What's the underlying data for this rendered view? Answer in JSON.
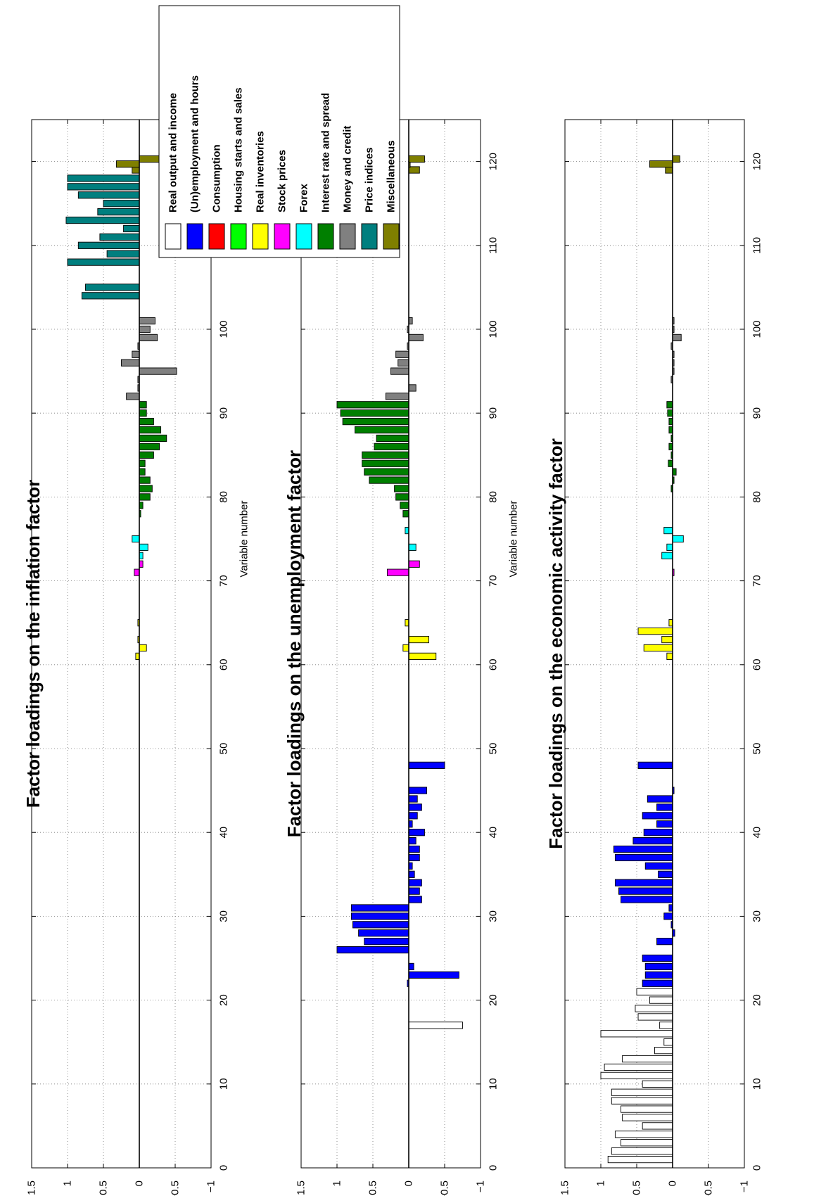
{
  "groups": [
    {
      "name": "Real output and income",
      "color": "#ffffff"
    },
    {
      "name": "(Un)employment and hours",
      "color": "#0000ff"
    },
    {
      "name": "Consumption",
      "color": "#ff0000"
    },
    {
      "name": "Housing starts and sales",
      "color": "#00ff00"
    },
    {
      "name": "Real inventories",
      "color": "#ffff00"
    },
    {
      "name": "Stock prices",
      "color": "#ff00ff"
    },
    {
      "name": "Forex",
      "color": "#00ffff"
    },
    {
      "name": "Interest rate and spread",
      "color": "#007f00"
    },
    {
      "name": "Money and credit",
      "color": "#808080"
    },
    {
      "name": "Price indices",
      "color": "#007f7f"
    },
    {
      "name": "Miscellaneous",
      "color": "#7f7f00"
    }
  ],
  "chart_data": [
    {
      "type": "bar",
      "title": "Factor loadings on the inflation factor",
      "xlabel": "Variable number",
      "ylabel": "",
      "xlim": [
        0,
        125
      ],
      "ylim": [
        -1,
        1.5
      ],
      "xticks": [
        0,
        10,
        20,
        30,
        40,
        50,
        60,
        70,
        80,
        90,
        100,
        110,
        120
      ],
      "yticks": [
        1.5,
        1,
        0.5,
        0,
        -0.5,
        -1
      ],
      "ytick_labels": [
        "1.5",
        "1",
        "0.5",
        "0",
        "−0.5",
        "−1"
      ],
      "grid": true,
      "bars": [
        {
          "x": 61,
          "y": 0.05,
          "group": 4
        },
        {
          "x": 62,
          "y": -0.1,
          "group": 4
        },
        {
          "x": 63,
          "y": 0.02,
          "group": 4
        },
        {
          "x": 65,
          "y": 0.02,
          "group": 4
        },
        {
          "x": 71,
          "y": 0.07,
          "group": 5
        },
        {
          "x": 72,
          "y": -0.05,
          "group": 5
        },
        {
          "x": 73,
          "y": -0.05,
          "group": 6
        },
        {
          "x": 74,
          "y": -0.12,
          "group": 6
        },
        {
          "x": 75,
          "y": 0.1,
          "group": 6
        },
        {
          "x": 78,
          "y": -0.02,
          "group": 7
        },
        {
          "x": 79,
          "y": -0.05,
          "group": 7
        },
        {
          "x": 80,
          "y": -0.15,
          "group": 7
        },
        {
          "x": 81,
          "y": -0.18,
          "group": 7
        },
        {
          "x": 82,
          "y": -0.15,
          "group": 7
        },
        {
          "x": 83,
          "y": -0.08,
          "group": 7
        },
        {
          "x": 84,
          "y": -0.08,
          "group": 7
        },
        {
          "x": 85,
          "y": -0.2,
          "group": 7
        },
        {
          "x": 86,
          "y": -0.28,
          "group": 7
        },
        {
          "x": 87,
          "y": -0.38,
          "group": 7
        },
        {
          "x": 88,
          "y": -0.3,
          "group": 7
        },
        {
          "x": 89,
          "y": -0.2,
          "group": 7
        },
        {
          "x": 90,
          "y": -0.1,
          "group": 7
        },
        {
          "x": 91,
          "y": -0.1,
          "group": 7
        },
        {
          "x": 92,
          "y": 0.18,
          "group": 8
        },
        {
          "x": 93,
          "y": 0.02,
          "group": 8
        },
        {
          "x": 94,
          "y": 0.02,
          "group": 8
        },
        {
          "x": 95,
          "y": -0.52,
          "group": 8
        },
        {
          "x": 96,
          "y": 0.25,
          "group": 8
        },
        {
          "x": 97,
          "y": 0.1,
          "group": 8
        },
        {
          "x": 98,
          "y": 0.02,
          "group": 8
        },
        {
          "x": 99,
          "y": -0.25,
          "group": 8
        },
        {
          "x": 100,
          "y": -0.15,
          "group": 8
        },
        {
          "x": 101,
          "y": -0.22,
          "group": 8
        },
        {
          "x": 104,
          "y": 0.8,
          "group": 9
        },
        {
          "x": 105,
          "y": 0.75,
          "group": 9
        },
        {
          "x": 108,
          "y": 1.0,
          "group": 9
        },
        {
          "x": 109,
          "y": 0.45,
          "group": 9
        },
        {
          "x": 110,
          "y": 0.85,
          "group": 9
        },
        {
          "x": 111,
          "y": 0.55,
          "group": 9
        },
        {
          "x": 112,
          "y": 0.22,
          "group": 9
        },
        {
          "x": 113,
          "y": 1.02,
          "group": 9
        },
        {
          "x": 114,
          "y": 0.58,
          "group": 9
        },
        {
          "x": 115,
          "y": 0.5,
          "group": 9
        },
        {
          "x": 116,
          "y": 0.85,
          "group": 9
        },
        {
          "x": 117,
          "y": 1.0,
          "group": 9
        },
        {
          "x": 118,
          "y": 1.0,
          "group": 9
        },
        {
          "x": 119,
          "y": 0.1,
          "group": 10
        },
        {
          "x": 119.7,
          "y": 0.32,
          "group": 10
        },
        {
          "x": 120.3,
          "y": -0.68,
          "group": 10
        }
      ]
    },
    {
      "type": "bar",
      "title": "Factor loadings on the unemployment factor",
      "xlabel": "Variable number",
      "ylabel": "",
      "xlim": [
        0,
        125
      ],
      "ylim": [
        -1,
        1.5
      ],
      "xticks": [
        0,
        10,
        20,
        30,
        40,
        50,
        60,
        70,
        80,
        90,
        100,
        110,
        120
      ],
      "yticks": [
        1.5,
        1,
        0.5,
        0,
        -0.5,
        -1
      ],
      "ytick_labels": [
        "1.5",
        "1",
        "0.5",
        "0",
        "−0.5",
        "−1"
      ],
      "grid": true,
      "bars": [
        {
          "x": 17,
          "y": -0.75,
          "group": 0
        },
        {
          "x": 22,
          "y": 0.02,
          "group": 1
        },
        {
          "x": 23,
          "y": -0.7,
          "group": 1
        },
        {
          "x": 24,
          "y": -0.07,
          "group": 1
        },
        {
          "x": 26,
          "y": 1.0,
          "group": 1
        },
        {
          "x": 27,
          "y": 0.62,
          "group": 1
        },
        {
          "x": 28,
          "y": 0.7,
          "group": 1
        },
        {
          "x": 29,
          "y": 0.78,
          "group": 1
        },
        {
          "x": 30,
          "y": 0.8,
          "group": 1
        },
        {
          "x": 31,
          "y": 0.8,
          "group": 1
        },
        {
          "x": 32,
          "y": -0.18,
          "group": 1
        },
        {
          "x": 33,
          "y": -0.15,
          "group": 1
        },
        {
          "x": 34,
          "y": -0.18,
          "group": 1
        },
        {
          "x": 35,
          "y": -0.08,
          "group": 1
        },
        {
          "x": 36,
          "y": -0.05,
          "group": 1
        },
        {
          "x": 37,
          "y": -0.15,
          "group": 1
        },
        {
          "x": 38,
          "y": -0.15,
          "group": 1
        },
        {
          "x": 39,
          "y": -0.1,
          "group": 1
        },
        {
          "x": 40,
          "y": -0.22,
          "group": 1
        },
        {
          "x": 41,
          "y": -0.05,
          "group": 1
        },
        {
          "x": 42,
          "y": -0.12,
          "group": 1
        },
        {
          "x": 43,
          "y": -0.18,
          "group": 1
        },
        {
          "x": 44,
          "y": -0.12,
          "group": 1
        },
        {
          "x": 45,
          "y": -0.25,
          "group": 1
        },
        {
          "x": 48,
          "y": -0.5,
          "group": 1
        },
        {
          "x": 61,
          "y": -0.38,
          "group": 4
        },
        {
          "x": 62,
          "y": 0.08,
          "group": 4
        },
        {
          "x": 63,
          "y": -0.28,
          "group": 4
        },
        {
          "x": 65,
          "y": 0.05,
          "group": 4
        },
        {
          "x": 71,
          "y": 0.3,
          "group": 5
        },
        {
          "x": 72,
          "y": -0.15,
          "group": 5
        },
        {
          "x": 74,
          "y": -0.1,
          "group": 6
        },
        {
          "x": 76,
          "y": 0.05,
          "group": 6
        },
        {
          "x": 78,
          "y": 0.08,
          "group": 7
        },
        {
          "x": 79,
          "y": 0.12,
          "group": 7
        },
        {
          "x": 80,
          "y": 0.18,
          "group": 7
        },
        {
          "x": 81,
          "y": 0.2,
          "group": 7
        },
        {
          "x": 82,
          "y": 0.55,
          "group": 7
        },
        {
          "x": 83,
          "y": 0.62,
          "group": 7
        },
        {
          "x": 84,
          "y": 0.65,
          "group": 7
        },
        {
          "x": 85,
          "y": 0.65,
          "group": 7
        },
        {
          "x": 86,
          "y": 0.48,
          "group": 7
        },
        {
          "x": 87,
          "y": 0.45,
          "group": 7
        },
        {
          "x": 88,
          "y": 0.75,
          "group": 7
        },
        {
          "x": 89,
          "y": 0.92,
          "group": 7
        },
        {
          "x": 90,
          "y": 0.95,
          "group": 7
        },
        {
          "x": 91,
          "y": 1.0,
          "group": 7
        },
        {
          "x": 92,
          "y": 0.32,
          "group": 8
        },
        {
          "x": 93,
          "y": -0.1,
          "group": 8
        },
        {
          "x": 95,
          "y": 0.25,
          "group": 8
        },
        {
          "x": 96,
          "y": 0.15,
          "group": 8
        },
        {
          "x": 97,
          "y": 0.18,
          "group": 8
        },
        {
          "x": 98,
          "y": 0.02,
          "group": 8
        },
        {
          "x": 99,
          "y": -0.2,
          "group": 8
        },
        {
          "x": 100,
          "y": 0.02,
          "group": 8
        },
        {
          "x": 101,
          "y": -0.05,
          "group": 8
        },
        {
          "x": 119,
          "y": -0.15,
          "group": 10
        },
        {
          "x": 119.7,
          "y": -0.02,
          "group": 10
        },
        {
          "x": 120.3,
          "y": -0.22,
          "group": 10
        }
      ]
    },
    {
      "type": "bar",
      "title": "Factor loadings on the economic activity factor",
      "xlabel": "",
      "ylabel": "",
      "xlim": [
        0,
        125
      ],
      "ylim": [
        -1,
        1.5
      ],
      "xticks": [
        0,
        10,
        20,
        30,
        40,
        50,
        60,
        70,
        80,
        90,
        100,
        110,
        120
      ],
      "yticks": [
        1.5,
        1,
        0.5,
        0,
        -0.5,
        -1
      ],
      "ytick_labels": [
        "1.5",
        "1",
        "0.5",
        "0",
        "−0.5",
        "−1"
      ],
      "grid": true,
      "bars": [
        {
          "x": 1,
          "y": 0.9,
          "group": 0
        },
        {
          "x": 2,
          "y": 0.85,
          "group": 0
        },
        {
          "x": 3,
          "y": 0.72,
          "group": 0
        },
        {
          "x": 4,
          "y": 0.8,
          "group": 0
        },
        {
          "x": 5,
          "y": 0.42,
          "group": 0
        },
        {
          "x": 6,
          "y": 0.7,
          "group": 0
        },
        {
          "x": 7,
          "y": 0.72,
          "group": 0
        },
        {
          "x": 8,
          "y": 0.85,
          "group": 0
        },
        {
          "x": 9,
          "y": 0.85,
          "group": 0
        },
        {
          "x": 10,
          "y": 0.42,
          "group": 0
        },
        {
          "x": 11,
          "y": 1.0,
          "group": 0
        },
        {
          "x": 12,
          "y": 0.95,
          "group": 0
        },
        {
          "x": 13,
          "y": 0.7,
          "group": 0
        },
        {
          "x": 14,
          "y": 0.25,
          "group": 0
        },
        {
          "x": 15,
          "y": 0.12,
          "group": 0
        },
        {
          "x": 16,
          "y": 1.0,
          "group": 0
        },
        {
          "x": 17,
          "y": 0.18,
          "group": 0
        },
        {
          "x": 18,
          "y": 0.48,
          "group": 0
        },
        {
          "x": 19,
          "y": 0.52,
          "group": 0
        },
        {
          "x": 20,
          "y": 0.32,
          "group": 0
        },
        {
          "x": 21,
          "y": 0.5,
          "group": 0
        },
        {
          "x": 22,
          "y": 0.42,
          "group": 1
        },
        {
          "x": 23,
          "y": 0.38,
          "group": 1
        },
        {
          "x": 24,
          "y": 0.38,
          "group": 1
        },
        {
          "x": 25,
          "y": 0.42,
          "group": 1
        },
        {
          "x": 27,
          "y": 0.22,
          "group": 1
        },
        {
          "x": 28,
          "y": -0.03,
          "group": 1
        },
        {
          "x": 29,
          "y": 0.02,
          "group": 1
        },
        {
          "x": 30,
          "y": 0.12,
          "group": 1
        },
        {
          "x": 31,
          "y": 0.05,
          "group": 1
        },
        {
          "x": 32,
          "y": 0.72,
          "group": 1
        },
        {
          "x": 33,
          "y": 0.75,
          "group": 1
        },
        {
          "x": 34,
          "y": 0.8,
          "group": 1
        },
        {
          "x": 35,
          "y": 0.2,
          "group": 1
        },
        {
          "x": 36,
          "y": 0.38,
          "group": 1
        },
        {
          "x": 37,
          "y": 0.8,
          "group": 1
        },
        {
          "x": 38,
          "y": 0.82,
          "group": 1
        },
        {
          "x": 39,
          "y": 0.55,
          "group": 1
        },
        {
          "x": 40,
          "y": 0.4,
          "group": 1
        },
        {
          "x": 41,
          "y": 0.22,
          "group": 1
        },
        {
          "x": 42,
          "y": 0.42,
          "group": 1
        },
        {
          "x": 43,
          "y": 0.22,
          "group": 1
        },
        {
          "x": 44,
          "y": 0.35,
          "group": 1
        },
        {
          "x": 45,
          "y": -0.02,
          "group": 1
        },
        {
          "x": 48,
          "y": 0.48,
          "group": 1
        },
        {
          "x": 61,
          "y": 0.08,
          "group": 4
        },
        {
          "x": 62,
          "y": 0.4,
          "group": 4
        },
        {
          "x": 63,
          "y": 0.15,
          "group": 4
        },
        {
          "x": 64,
          "y": 0.48,
          "group": 4
        },
        {
          "x": 65,
          "y": 0.05,
          "group": 4
        },
        {
          "x": 71,
          "y": -0.02,
          "group": 5
        },
        {
          "x": 73,
          "y": 0.15,
          "group": 6
        },
        {
          "x": 74,
          "y": 0.08,
          "group": 6
        },
        {
          "x": 75,
          "y": -0.15,
          "group": 6
        },
        {
          "x": 76,
          "y": 0.12,
          "group": 6
        },
        {
          "x": 81,
          "y": 0.02,
          "group": 7
        },
        {
          "x": 82,
          "y": -0.02,
          "group": 7
        },
        {
          "x": 83,
          "y": -0.05,
          "group": 7
        },
        {
          "x": 84,
          "y": 0.06,
          "group": 7
        },
        {
          "x": 85,
          "y": 0.02,
          "group": 7
        },
        {
          "x": 86,
          "y": 0.05,
          "group": 7
        },
        {
          "x": 87,
          "y": 0.02,
          "group": 7
        },
        {
          "x": 88,
          "y": 0.05,
          "group": 7
        },
        {
          "x": 89,
          "y": 0.05,
          "group": 7
        },
        {
          "x": 90,
          "y": 0.07,
          "group": 7
        },
        {
          "x": 91,
          "y": 0.08,
          "group": 7
        },
        {
          "x": 94,
          "y": 0.02,
          "group": 8
        },
        {
          "x": 95,
          "y": -0.02,
          "group": 8
        },
        {
          "x": 96,
          "y": -0.02,
          "group": 8
        },
        {
          "x": 97,
          "y": -0.02,
          "group": 8
        },
        {
          "x": 98,
          "y": 0.02,
          "group": 8
        },
        {
          "x": 99,
          "y": -0.12,
          "group": 8
        },
        {
          "x": 100,
          "y": -0.02,
          "group": 8
        },
        {
          "x": 101,
          "y": -0.02,
          "group": 8
        },
        {
          "x": 119,
          "y": 0.1,
          "group": 10
        },
        {
          "x": 119.7,
          "y": 0.32,
          "group": 10
        },
        {
          "x": 120.3,
          "y": -0.1,
          "group": 10
        }
      ]
    }
  ]
}
